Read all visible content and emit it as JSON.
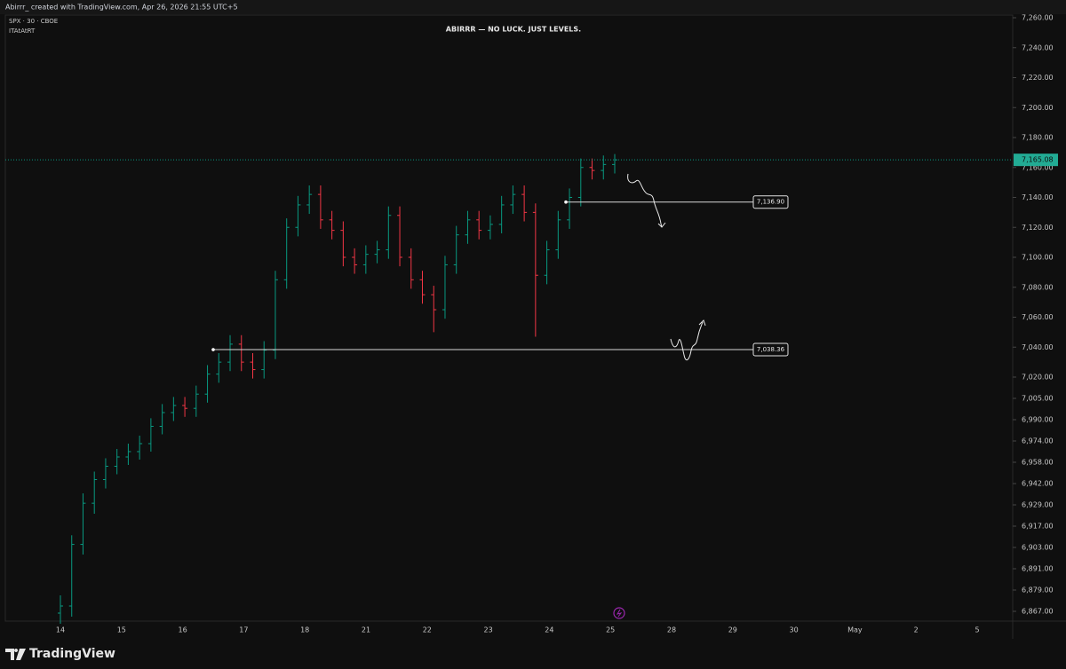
{
  "header": "Abirrr_ created with TradingView.com, Apr 26, 2026 21:55 UTC+5",
  "symbol": "SPX · 30 · CBOE",
  "indicator": "ITAtAtRT",
  "logo": "TradingView",
  "chart_data": {
    "type": "ohlc",
    "title": "ABIRRR — NO LUCK. JUST LEVELS.",
    "up_color": "#089981",
    "down_color": "#f23645",
    "xtick_labels": [
      "14",
      "15",
      "16",
      "17",
      "18",
      "21",
      "22",
      "23",
      "24",
      "25",
      "28",
      "29",
      "30",
      "May",
      "2",
      "5"
    ],
    "open": [
      6866,
      6870,
      6905,
      6930,
      6945,
      6955,
      6962,
      6966,
      6972,
      6985,
      6995,
      7000,
      6998,
      7008,
      7022,
      7030,
      7042,
      7030,
      7025,
      7038,
      7085,
      7120,
      7135,
      7142,
      7125,
      7118,
      7100,
      7095,
      7102,
      7105,
      7128,
      7100,
      7085,
      7075,
      7065,
      7095,
      7115,
      7125,
      7118,
      7122,
      7135,
      7142,
      7130,
      7088,
      7105,
      7125,
      7140,
      7160,
      7158,
      7162
    ],
    "high": [
      6876,
      6911,
      6936,
      6951,
      6961,
      6968,
      6972,
      6978,
      6991,
      7001,
      7006,
      7006,
      7014,
      7028,
      7036,
      7048,
      7048,
      7036,
      7044,
      7091,
      7126,
      7141,
      7148,
      7148,
      7131,
      7124,
      7106,
      7108,
      7111,
      7134,
      7134,
      7106,
      7091,
      7081,
      7101,
      7121,
      7131,
      7131,
      7128,
      7141,
      7148,
      7148,
      7136,
      7111,
      7131,
      7146,
      7166,
      7166,
      7168,
      7169
    ],
    "low": [
      6860,
      6864,
      6899,
      6924,
      6939,
      6949,
      6956,
      6960,
      6966,
      6979,
      6989,
      6992,
      6992,
      7002,
      7016,
      7024,
      7024,
      7019,
      7019,
      7032,
      7079,
      7114,
      7129,
      7119,
      7112,
      7094,
      7089,
      7089,
      7096,
      7099,
      7094,
      7079,
      7069,
      7050,
      7059,
      7089,
      7109,
      7112,
      7112,
      7116,
      7129,
      7124,
      7047,
      7082,
      7099,
      7119,
      7134,
      7152,
      7152,
      7156
    ],
    "close": [
      6870,
      6905,
      6930,
      6945,
      6955,
      6962,
      6966,
      6972,
      6985,
      6995,
      7000,
      6998,
      7008,
      7022,
      7030,
      7042,
      7030,
      7025,
      7038,
      7085,
      7120,
      7135,
      7142,
      7125,
      7118,
      7100,
      7095,
      7102,
      7105,
      7128,
      7100,
      7085,
      7075,
      7065,
      7095,
      7115,
      7125,
      7118,
      7122,
      7135,
      7142,
      7130,
      7088,
      7105,
      7125,
      7140,
      7160,
      7158,
      7162,
      7165.08
    ],
    "ylim": [
      6862,
      7268
    ],
    "yticks": [
      {
        "value": 7260,
        "label": "7,260.00"
      },
      {
        "value": 7240,
        "label": "7,240.00"
      },
      {
        "value": 7220,
        "label": "7,220.00"
      },
      {
        "value": 7200,
        "label": "7,200.00"
      },
      {
        "value": 7180,
        "label": "7,180.00"
      },
      {
        "value": 7160,
        "label": "7,160.00"
      },
      {
        "value": 7140,
        "label": "7,140.00"
      },
      {
        "value": 7120,
        "label": "7,120.00"
      },
      {
        "value": 7100,
        "label": "7,100.00"
      },
      {
        "value": 7080,
        "label": "7,080.00"
      },
      {
        "value": 7060,
        "label": "7,060.00"
      },
      {
        "value": 7040,
        "label": "7,040.00"
      },
      {
        "value": 7020,
        "label": "7,020.00"
      },
      {
        "value": 7005,
        "label": "7,005.00"
      },
      {
        "value": 6990,
        "label": "6,990.00"
      },
      {
        "value": 6974,
        "label": "6,974.00"
      },
      {
        "value": 6958,
        "label": "6,958.00"
      },
      {
        "value": 6942,
        "label": "6,942.00"
      },
      {
        "value": 6929,
        "label": "6,929.00"
      },
      {
        "value": 6917,
        "label": "6,917.00"
      },
      {
        "value": 6903,
        "label": "6,903.00"
      },
      {
        "value": 6891,
        "label": "6,891.00"
      },
      {
        "value": 6879,
        "label": "6,879.00"
      },
      {
        "value": 6867,
        "label": "6,867.00"
      }
    ],
    "last_price": {
      "value": 7165.08,
      "label": "7,165.08"
    },
    "levels": [
      {
        "value": 7136.9,
        "label": "7,136.90"
      },
      {
        "value": 7038.36,
        "label": "7,038.36"
      }
    ]
  }
}
